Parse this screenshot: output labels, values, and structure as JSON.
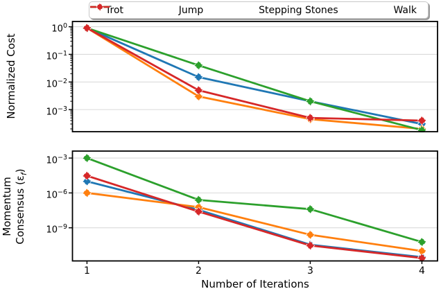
{
  "chart_data": [
    {
      "type": "line",
      "title": "",
      "ylabel": "Normalized Cost",
      "xlabel": "",
      "yscale": "log",
      "grid": "horizontal major gridlines, light gray",
      "x": [
        1,
        2,
        3,
        4
      ],
      "xlim": [
        0.87,
        4.14
      ],
      "ylim_exponents": [
        -3.8,
        0.19
      ],
      "ytick_exponents": [
        0,
        -1,
        -2,
        -3
      ],
      "minor_ticks": true,
      "series": [
        {
          "name": "Trot",
          "color": "#1f77b4",
          "marker": "diamond",
          "values": [
            0.9,
            0.015,
            0.002,
            0.0003
          ]
        },
        {
          "name": "Jump",
          "color": "#ff7f0e",
          "marker": "diamond",
          "values": [
            0.9,
            0.003,
            0.00045,
            0.0002
          ]
        },
        {
          "name": "Stepping Stones",
          "color": "#2ca02c",
          "marker": "diamond",
          "values": [
            0.9,
            0.04,
            0.002,
            0.00018
          ]
        },
        {
          "name": "Walk",
          "color": "#d62728",
          "marker": "diamond",
          "values": [
            0.9,
            0.005,
            0.0005,
            0.0004
          ]
        }
      ]
    },
    {
      "type": "line",
      "title": "",
      "ylabel": "Momentum\nConsensus (ε_f)",
      "xlabel": "Number of Iterations",
      "yscale": "log",
      "grid": "horizontal major gridlines, light gray",
      "x": [
        1,
        2,
        3,
        4
      ],
      "xtick_labels": [
        "1",
        "2",
        "3",
        "4"
      ],
      "xlim": [
        0.87,
        4.14
      ],
      "ylim_exponents": [
        -11.85,
        -2.4
      ],
      "ytick_exponents": [
        -3,
        -6,
        -9
      ],
      "minor_ticks": false,
      "series": [
        {
          "name": "Trot",
          "color": "#1f77b4",
          "marker": "diamond",
          "values": [
            1e-05,
            3.5e-08,
            3.5e-11,
            3e-12
          ]
        },
        {
          "name": "Jump",
          "color": "#ff7f0e",
          "marker": "diamond",
          "values": [
            1e-06,
            6e-08,
            2.5e-10,
            1e-11
          ]
        },
        {
          "name": "Stepping Stones",
          "color": "#2ca02c",
          "marker": "diamond",
          "values": [
            0.001,
            2.5e-07,
            4e-08,
            6e-11
          ]
        },
        {
          "name": "Walk",
          "color": "#d62728",
          "marker": "diamond",
          "values": [
            3e-05,
            2.5e-08,
            3e-11,
            2.5e-12
          ]
        }
      ]
    }
  ],
  "legend": {
    "position": "top center, horizontal, boxed with shadow",
    "entries": [
      "Trot",
      "Jump",
      "Stepping Stones",
      "Walk"
    ]
  }
}
